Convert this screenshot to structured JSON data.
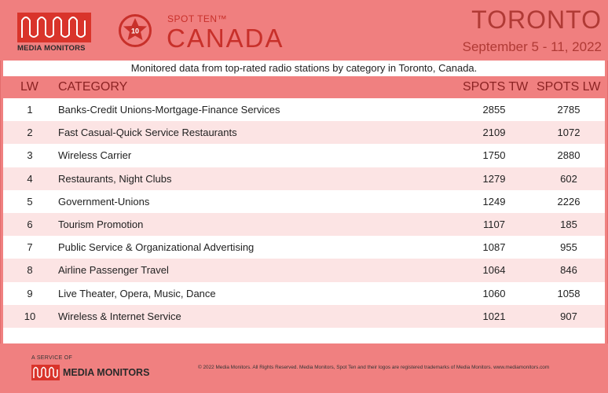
{
  "brand": {
    "logo_text": "MEDIA MONITORS",
    "spot_ten": "SPOT TEN™",
    "badge_number": "10",
    "country": "CANADA",
    "city": "TORONTO",
    "dates": "September 5 - 11, 2022",
    "accent_color": "#c8302a",
    "logo_color": "#d9342b"
  },
  "subtitle": "Monitored data from top-rated radio stations by category in Toronto, Canada.",
  "table": {
    "headers": {
      "lw": "LW",
      "category": "CATEGORY",
      "spots_tw": "SPOTS TW",
      "spots_lw": "SPOTS LW"
    },
    "rows": [
      {
        "rank": "1",
        "category": "Banks-Credit Unions-Mortgage-Finance Services",
        "tw": "2855",
        "lw": "2785"
      },
      {
        "rank": "2",
        "category": "Fast Casual-Quick Service Restaurants",
        "tw": "2109",
        "lw": "1072"
      },
      {
        "rank": "3",
        "category": "Wireless Carrier",
        "tw": "1750",
        "lw": "2880"
      },
      {
        "rank": "4",
        "category": "Restaurants, Night Clubs",
        "tw": "1279",
        "lw": "602"
      },
      {
        "rank": "5",
        "category": "Government-Unions",
        "tw": "1249",
        "lw": "2226"
      },
      {
        "rank": "6",
        "category": "Tourism Promotion",
        "tw": "1107",
        "lw": "185"
      },
      {
        "rank": "7",
        "category": "Public Service & Organizational Advertising",
        "tw": "1087",
        "lw": "955"
      },
      {
        "rank": "8",
        "category": "Airline Passenger Travel",
        "tw": "1064",
        "lw": "846"
      },
      {
        "rank": "9",
        "category": "Live Theater, Opera, Music, Dance",
        "tw": "1060",
        "lw": "1058"
      },
      {
        "rank": "10",
        "category": "Wireless & Internet Service",
        "tw": "1021",
        "lw": "907"
      }
    ]
  },
  "footer": {
    "service": "A SERVICE OF",
    "logo_text": "MEDIA MONITORS",
    "copyright": "© 2022 Media Monitors. All Rights Reserved. Media Monitors, Spot Ten and their logos are registered trademarks of Media Monitors. www.mediamonitors.com"
  }
}
